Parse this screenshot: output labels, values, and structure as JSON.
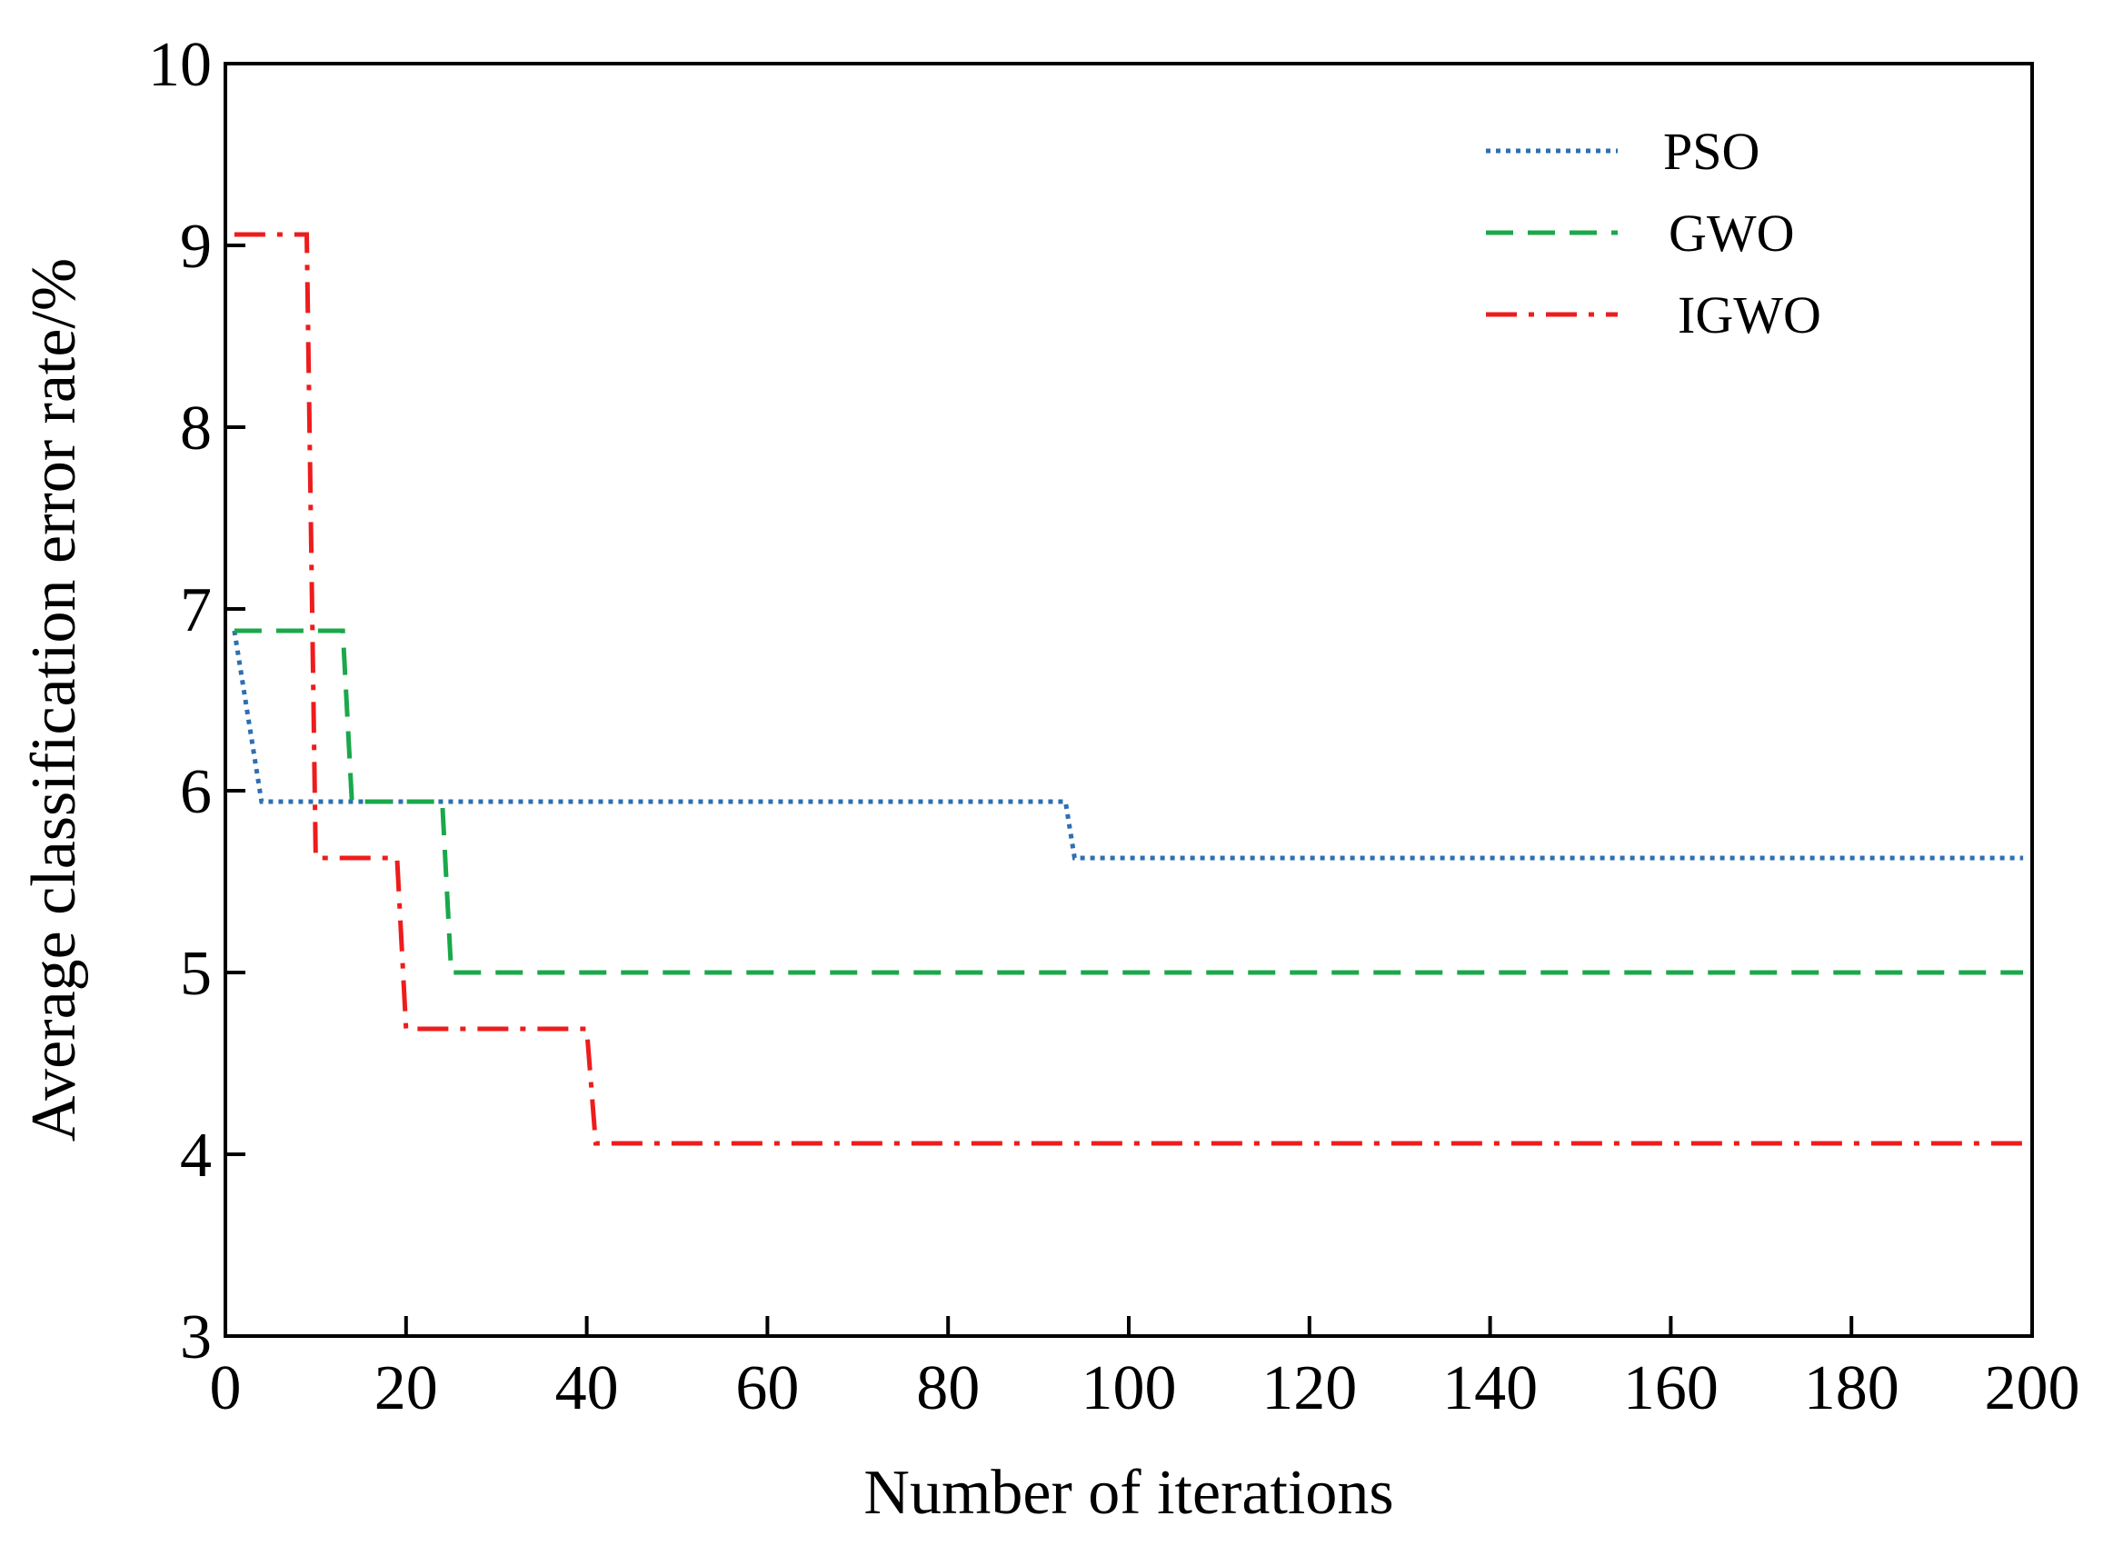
{
  "chart_data": {
    "type": "line",
    "title": "",
    "xlabel": "Number of iterations",
    "ylabel": "Average classification error rate/%",
    "xlim": [
      0,
      200
    ],
    "ylim": [
      3,
      10
    ],
    "x_ticks": [
      "0",
      "20",
      "40",
      "60",
      "80",
      "100",
      "120",
      "140",
      "160",
      "180",
      "200"
    ],
    "y_ticks": [
      "3",
      "4",
      "5",
      "6",
      "7",
      "8",
      "9",
      "10"
    ],
    "grid": false,
    "legend_position": "top-right",
    "series": [
      {
        "name": "PSO",
        "color": "#2e6fb0",
        "style": "dotted",
        "points": [
          [
            1,
            6.88
          ],
          [
            4,
            5.94
          ],
          [
            93,
            5.94
          ],
          [
            94,
            5.63
          ],
          [
            199,
            5.63
          ]
        ]
      },
      {
        "name": "GWO",
        "color": "#1aa84a",
        "style": "dashed",
        "points": [
          [
            1,
            6.88
          ],
          [
            13,
            6.88
          ],
          [
            14,
            5.94
          ],
          [
            24,
            5.94
          ],
          [
            25,
            5.0
          ],
          [
            199,
            5.0
          ]
        ]
      },
      {
        "name": "IGWO",
        "color": "#ee1c1c",
        "style": "dashdot",
        "points": [
          [
            1,
            9.06
          ],
          [
            9,
            9.06
          ],
          [
            10,
            5.63
          ],
          [
            19,
            5.63
          ],
          [
            20,
            4.69
          ],
          [
            40,
            4.69
          ],
          [
            41,
            4.06
          ],
          [
            199,
            4.06
          ]
        ]
      }
    ]
  }
}
